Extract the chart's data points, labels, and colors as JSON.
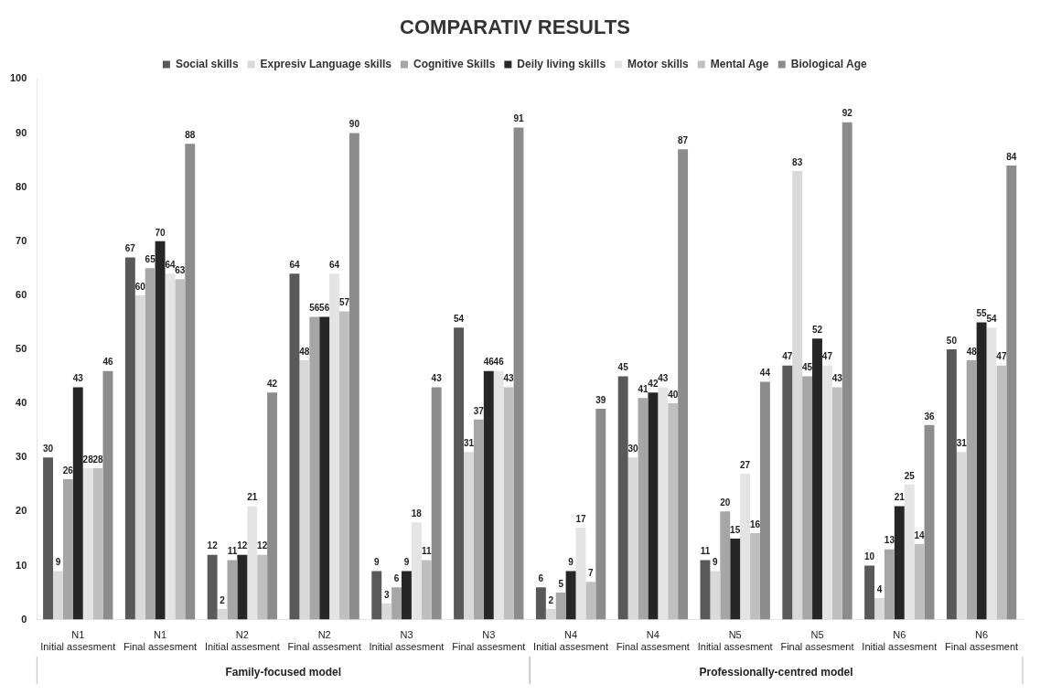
{
  "chart_data": {
    "type": "bar",
    "title": "COMPARATIV RESULTS",
    "categories": [
      "N1\nInitial assesment",
      "N1\nFinal assesment",
      "N2\nInitial assesment",
      "N2\nFinal assesment",
      "N3\nInitial assesment",
      "N3\nFinal assesment",
      "N4\nInitial assesment",
      "N4\nFinal assesment",
      "N5\nInitial assesment",
      "N5\nFinal assesment",
      "N6\nInitial assesment",
      "N6\nFinal assesment"
    ],
    "series": [
      {
        "name": "Social skills",
        "color": "#595959",
        "values": [
          30,
          67,
          12,
          64,
          9,
          54,
          6,
          45,
          11,
          47,
          10,
          50
        ]
      },
      {
        "name": "Expresiv Language skills",
        "color": "#d9d9d9",
        "values": [
          9,
          60,
          2,
          48,
          3,
          31,
          2,
          30,
          9,
          83,
          4,
          31
        ]
      },
      {
        "name": "Cognitive Skills",
        "color": "#a6a6a6",
        "values": [
          26,
          65,
          11,
          56,
          6,
          37,
          5,
          41,
          20,
          45,
          13,
          48
        ]
      },
      {
        "name": "Deily living skills",
        "color": "#262626",
        "values": [
          43,
          70,
          12,
          56,
          9,
          46,
          9,
          42,
          15,
          52,
          21,
          55
        ]
      },
      {
        "name": "Motor skills",
        "color": "#e4e4e4",
        "values": [
          28,
          64,
          21,
          64,
          18,
          46,
          17,
          43,
          27,
          47,
          25,
          54
        ]
      },
      {
        "name": "Mental Age",
        "color": "#bfbfbf",
        "values": [
          28,
          63,
          12,
          57,
          11,
          43,
          7,
          40,
          16,
          43,
          14,
          47
        ]
      },
      {
        "name": "Biological Age",
        "color": "#8c8c8c",
        "values": [
          46,
          88,
          42,
          90,
          43,
          91,
          39,
          87,
          44,
          92,
          36,
          84
        ]
      }
    ],
    "ylim": [
      0,
      100
    ],
    "yticks": [
      0,
      10,
      20,
      30,
      40,
      50,
      60,
      70,
      80,
      90,
      100
    ],
    "grid": false,
    "legend": "top",
    "data_labels": true,
    "annotations": [
      "Family-focused model",
      "Professionally-centred model"
    ]
  }
}
